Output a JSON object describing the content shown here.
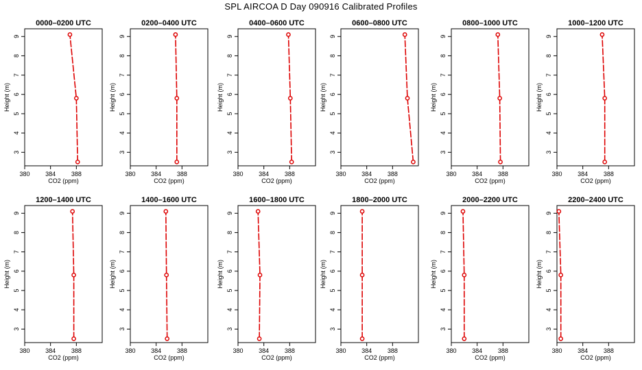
{
  "title": "SPL  AIRCOA D  Day 090916  Calibrated Profiles",
  "colors": {
    "series": "#dd0000",
    "axes": "#000000",
    "background": "#ffffff"
  },
  "chart_data": [
    {
      "type": "line",
      "title": "0000–0200 UTC",
      "xlabel": "CO2 (ppm)",
      "ylabel": "Height (m)",
      "xlim": [
        380,
        392
      ],
      "ylim": [
        2.3,
        9.4
      ],
      "xticks": [
        380,
        384,
        388
      ],
      "yticks": [
        3,
        4,
        5,
        6,
        7,
        8,
        9
      ],
      "x": [
        388.2,
        388.0,
        387.0
      ],
      "y": [
        2.5,
        5.8,
        9.1
      ],
      "grid": false
    },
    {
      "type": "line",
      "title": "0200–0400 UTC",
      "xlabel": "CO2 (ppm)",
      "ylabel": "Height (m)",
      "xlim": [
        380,
        392
      ],
      "ylim": [
        2.3,
        9.4
      ],
      "xticks": [
        380,
        384,
        388
      ],
      "yticks": [
        3,
        4,
        5,
        6,
        7,
        8,
        9
      ],
      "x": [
        387.2,
        387.2,
        387.0
      ],
      "y": [
        2.5,
        5.8,
        9.1
      ],
      "grid": false
    },
    {
      "type": "line",
      "title": "0400–0600 UTC",
      "xlabel": "CO2 (ppm)",
      "ylabel": "Height (m)",
      "xlim": [
        380,
        392
      ],
      "ylim": [
        2.3,
        9.4
      ],
      "xticks": [
        380,
        384,
        388
      ],
      "yticks": [
        3,
        4,
        5,
        6,
        7,
        8,
        9
      ],
      "x": [
        388.3,
        388.1,
        387.8
      ],
      "y": [
        2.5,
        5.8,
        9.1
      ],
      "grid": false
    },
    {
      "type": "line",
      "title": "0600–0800 UTC",
      "xlabel": "CO2 (ppm)",
      "ylabel": "Height (m)",
      "xlim": [
        380,
        392
      ],
      "ylim": [
        2.3,
        9.4
      ],
      "xticks": [
        380,
        384,
        388
      ],
      "yticks": [
        3,
        4,
        5,
        6,
        7,
        8,
        9
      ],
      "x": [
        391.2,
        390.3,
        389.9
      ],
      "y": [
        2.5,
        5.8,
        9.1
      ],
      "grid": false
    },
    {
      "type": "line",
      "title": "0800–1000 UTC",
      "xlabel": "CO2 (ppm)",
      "ylabel": "Height (m)",
      "xlim": [
        380,
        392
      ],
      "ylim": [
        2.3,
        9.4
      ],
      "xticks": [
        380,
        384,
        388
      ],
      "yticks": [
        3,
        4,
        5,
        6,
        7,
        8,
        9
      ],
      "x": [
        387.6,
        387.5,
        387.2
      ],
      "y": [
        2.5,
        5.8,
        9.1
      ],
      "grid": false
    },
    {
      "type": "line",
      "title": "1000–1200 UTC",
      "xlabel": "CO2 (ppm)",
      "ylabel": "Height (m)",
      "xlim": [
        380,
        392
      ],
      "ylim": [
        2.3,
        9.4
      ],
      "xticks": [
        380,
        384,
        388
      ],
      "yticks": [
        3,
        4,
        5,
        6,
        7,
        8,
        9
      ],
      "x": [
        387.4,
        387.4,
        387.0
      ],
      "y": [
        2.5,
        5.8,
        9.1
      ],
      "grid": false
    },
    {
      "type": "line",
      "title": "1200–1400 UTC",
      "xlabel": "CO2 (ppm)",
      "ylabel": "Height (m)",
      "xlim": [
        380,
        392
      ],
      "ylim": [
        2.3,
        9.4
      ],
      "xticks": [
        380,
        384,
        388
      ],
      "yticks": [
        3,
        4,
        5,
        6,
        7,
        8,
        9
      ],
      "x": [
        387.6,
        387.6,
        387.4
      ],
      "y": [
        2.5,
        5.8,
        9.1
      ],
      "grid": false
    },
    {
      "type": "line",
      "title": "1400–1600 UTC",
      "xlabel": "CO2 (ppm)",
      "ylabel": "Height (m)",
      "xlim": [
        380,
        392
      ],
      "ylim": [
        2.3,
        9.4
      ],
      "xticks": [
        380,
        384,
        388
      ],
      "yticks": [
        3,
        4,
        5,
        6,
        7,
        8,
        9
      ],
      "x": [
        385.7,
        385.6,
        385.5
      ],
      "y": [
        2.5,
        5.8,
        9.1
      ],
      "grid": false
    },
    {
      "type": "line",
      "title": "1600–1800 UTC",
      "xlabel": "CO2 (ppm)",
      "ylabel": "Height (m)",
      "xlim": [
        380,
        392
      ],
      "ylim": [
        2.3,
        9.4
      ],
      "xticks": [
        380,
        384,
        388
      ],
      "yticks": [
        3,
        4,
        5,
        6,
        7,
        8,
        9
      ],
      "x": [
        383.3,
        383.4,
        383.1
      ],
      "y": [
        2.5,
        5.8,
        9.1
      ],
      "grid": false
    },
    {
      "type": "line",
      "title": "1800–2000 UTC",
      "xlabel": "CO2 (ppm)",
      "ylabel": "Height (m)",
      "xlim": [
        380,
        392
      ],
      "ylim": [
        2.3,
        9.4
      ],
      "xticks": [
        380,
        384,
        388
      ],
      "yticks": [
        3,
        4,
        5,
        6,
        7,
        8,
        9
      ],
      "x": [
        383.3,
        383.3,
        383.3
      ],
      "y": [
        2.5,
        5.8,
        9.1
      ],
      "grid": false
    },
    {
      "type": "line",
      "title": "2000–2200 UTC",
      "xlabel": "CO2 (ppm)",
      "ylabel": "Height (m)",
      "xlim": [
        380,
        392
      ],
      "ylim": [
        2.3,
        9.4
      ],
      "xticks": [
        380,
        384,
        388
      ],
      "yticks": [
        3,
        4,
        5,
        6,
        7,
        8,
        9
      ],
      "x": [
        382.0,
        382.0,
        381.8
      ],
      "y": [
        2.5,
        5.8,
        9.1
      ],
      "grid": false
    },
    {
      "type": "line",
      "title": "2200–2400 UTC",
      "xlabel": "CO2 (ppm)",
      "ylabel": "Height (m)",
      "xlim": [
        380,
        392
      ],
      "ylim": [
        2.3,
        9.4
      ],
      "xticks": [
        380,
        384,
        388
      ],
      "yticks": [
        3,
        4,
        5,
        6,
        7,
        8,
        9
      ],
      "x": [
        380.6,
        380.6,
        380.3
      ],
      "y": [
        2.5,
        5.8,
        9.1
      ],
      "grid": false
    }
  ]
}
